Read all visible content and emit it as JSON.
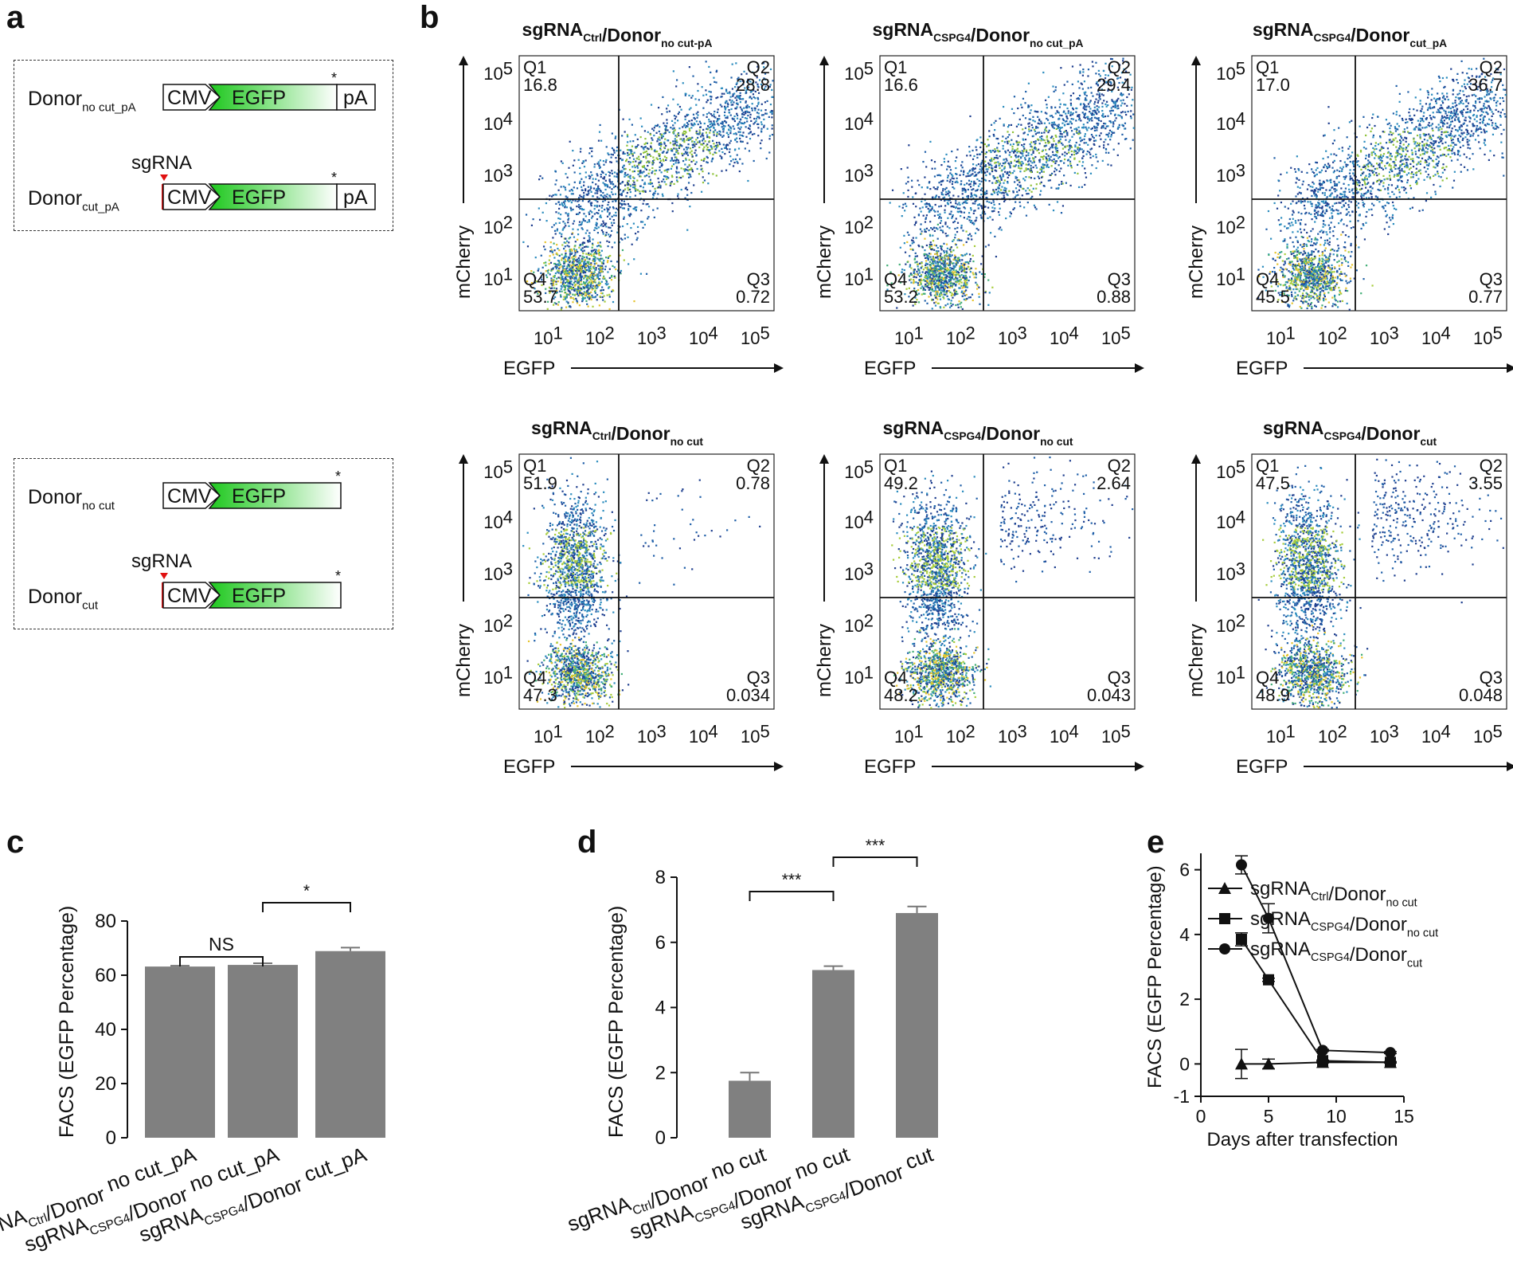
{
  "panels": {
    "a": "a",
    "b": "b",
    "c": "c",
    "d": "d",
    "e": "e"
  },
  "panel_a": {
    "constructs": [
      {
        "name": "Donor",
        "sub": "no cut_pA",
        "has_sgrna": false,
        "has_pa": true
      },
      {
        "name": "Donor",
        "sub": "cut_pA",
        "has_sgrna": true,
        "has_pa": true
      },
      {
        "name": "Donor",
        "sub": "no cut",
        "has_sgrna": false,
        "has_pa": false
      },
      {
        "name": "Donor",
        "sub": "cut",
        "has_sgrna": true,
        "has_pa": false
      }
    ],
    "sgrna_label": "sgRNA",
    "cmv": "CMV",
    "egfp": "EGFP",
    "pa": "pA",
    "stop": "*"
  },
  "panel_b": {
    "x_axis": "EGFP",
    "y_axis": "mCherry",
    "log_ticks": [
      "10",
      "10",
      "10",
      "10",
      "10"
    ],
    "log_exps": [
      "1",
      "2",
      "3",
      "4",
      "5"
    ],
    "quadrant_names": [
      "Q1",
      "Q2",
      "Q3",
      "Q4"
    ],
    "plots": [
      {
        "title_main": "sgRNA",
        "title_sub1": "Ctrl",
        "title_mid": "/Donor",
        "title_sub2": "no cut-pA",
        "q1": "16.8",
        "q2": "28.8",
        "q3": "0.72",
        "q4": "53.7"
      },
      {
        "title_main": "sgRNA",
        "title_sub1": "CSPG4",
        "title_mid": "/Donor",
        "title_sub2": "no cut_pA",
        "q1": "16.6",
        "q2": "29.4",
        "q3": "0.88",
        "q4": "53.2"
      },
      {
        "title_main": "sgRNA",
        "title_sub1": "CSPG4",
        "title_mid": "/Donor",
        "title_sub2": "cut_pA",
        "q1": "17.0",
        "q2": "36.7",
        "q3": "0.77",
        "q4": "45.5"
      },
      {
        "title_main": "sgRNA",
        "title_sub1": "Ctrl",
        "title_mid": "/Donor",
        "title_sub2": "no cut",
        "q1": "51.9",
        "q2": "0.78",
        "q3": "0.034",
        "q4": "47.3"
      },
      {
        "title_main": "sgRNA",
        "title_sub1": "CSPG4",
        "title_mid": "/Donor",
        "title_sub2": "no cut",
        "q1": "49.2",
        "q2": "2.64",
        "q3": "0.043",
        "q4": "48.2"
      },
      {
        "title_main": "sgRNA",
        "title_sub1": "CSPG4",
        "title_mid": "/Donor",
        "title_sub2": "cut",
        "q1": "47.5",
        "q2": "3.55",
        "q3": "0.048",
        "q4": "48.9"
      }
    ]
  },
  "chart_data": [
    {
      "id": "c",
      "type": "bar",
      "ylabel": "FACS (EGFP Percentage)",
      "ylim": [
        0,
        80
      ],
      "yticks": [
        0,
        20,
        40,
        60,
        80
      ],
      "categories": [
        {
          "a": "sgRNA",
          "b": "Ctrl",
          "c": "/Donor",
          "d": " no cut_pA"
        },
        {
          "a": "sgRNA",
          "b": "CSPG4",
          "c": "/Donor",
          "d": " no cut_pA"
        },
        {
          "a": "sgRNA",
          "b": "CSPG4",
          "c": "/Donor",
          "d": " cut_pA"
        }
      ],
      "values": [
        63.2,
        63.8,
        68.9
      ],
      "errors": [
        0.3,
        0.6,
        1.3
      ],
      "significance": [
        {
          "from": 0,
          "to": 1,
          "label": "NS"
        },
        {
          "from": 1,
          "to": 2,
          "label": "*"
        }
      ]
    },
    {
      "id": "d",
      "type": "bar",
      "ylabel": "FACS (EGFP Percentage)",
      "ylim": [
        0,
        8
      ],
      "yticks": [
        0,
        2,
        4,
        6,
        8
      ],
      "categories": [
        {
          "a": "sgRNA",
          "b": "Ctrl",
          "c": "/Donor",
          "d": " no cut"
        },
        {
          "a": "sgRNA",
          "b": "CSPG4",
          "c": "/Donor",
          "d": " no cut"
        },
        {
          "a": "sgRNA",
          "b": "CSPG4",
          "c": "/Donor",
          "d": " cut"
        }
      ],
      "values": [
        1.75,
        5.15,
        6.9
      ],
      "errors": [
        0.25,
        0.12,
        0.2
      ],
      "significance": [
        {
          "from": 0,
          "to": 1,
          "label": "***"
        },
        {
          "from": 1,
          "to": 2,
          "label": "***"
        }
      ]
    },
    {
      "id": "e",
      "type": "line",
      "xlabel": "Days after transfection",
      "ylabel": "FACS (EGFP Percentage)",
      "xlim": [
        0,
        15
      ],
      "ylim": [
        -1,
        7
      ],
      "xticks": [
        0,
        5,
        10,
        15
      ],
      "yticks": [
        -1,
        0,
        2,
        4,
        6
      ],
      "x": [
        3,
        5,
        9,
        14
      ],
      "series": [
        {
          "name_a": "sgRNA",
          "name_b": "Ctrl",
          "name_c": "/Donor",
          "name_d": "no cut",
          "marker": "triangle",
          "values": [
            0,
            0,
            0.05,
            0.05
          ],
          "errors": [
            0.45,
            0.15,
            0.02,
            0.02
          ]
        },
        {
          "name_a": "sgRNA",
          "name_b": "CSPG4",
          "name_c": "/Donor",
          "name_d": "no cut",
          "marker": "square",
          "values": [
            3.85,
            2.6,
            0.1,
            0.05
          ],
          "errors": [
            0.2,
            0.05,
            0.02,
            0.02
          ]
        },
        {
          "name_a": "sgRNA",
          "name_b": "CSPG4",
          "name_c": "/Donor",
          "name_d": "cut",
          "marker": "circle",
          "values": [
            6.15,
            4.5,
            0.42,
            0.35
          ],
          "errors": [
            0.28,
            0.45,
            0.03,
            0.03
          ]
        }
      ]
    }
  ]
}
